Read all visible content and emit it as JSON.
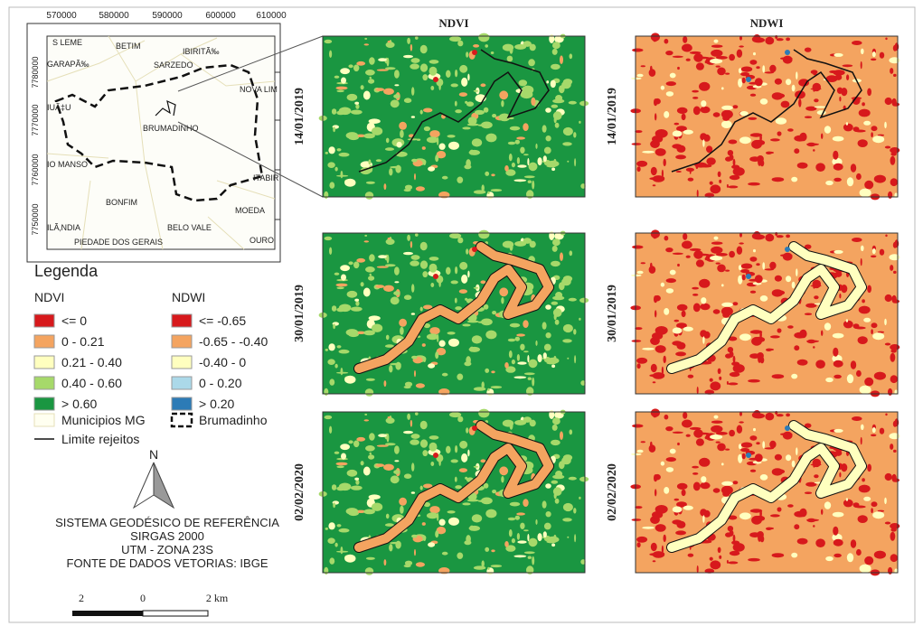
{
  "locator_map": {
    "x_ticks": [
      "570000",
      "580000",
      "590000",
      "600000",
      "610000"
    ],
    "y_ticks": [
      "7780000",
      "7770000",
      "7760000",
      "7750000"
    ],
    "places": [
      {
        "label": "S LEME",
        "x": 58,
        "y": 50
      },
      {
        "label": "BETIM",
        "x": 128,
        "y": 54
      },
      {
        "label": "IBIRITÃ‰",
        "x": 202,
        "y": 60
      },
      {
        "label": "GARAPÃ‰",
        "x": 52,
        "y": 74
      },
      {
        "label": "SARZEDO",
        "x": 170,
        "y": 75
      },
      {
        "label": "NOVA LIM",
        "x": 265,
        "y": 102
      },
      {
        "label": "IUÃ‡U",
        "x": 52,
        "y": 122
      },
      {
        "label": "BRUMADINHO",
        "x": 158,
        "y": 145
      },
      {
        "label": "IO MANSO",
        "x": 52,
        "y": 185
      },
      {
        "label": "ITABIR",
        "x": 280,
        "y": 200
      },
      {
        "label": "BONFIM",
        "x": 117,
        "y": 227
      },
      {
        "label": "MOEDA",
        "x": 260,
        "y": 236
      },
      {
        "label": "BELO VALE",
        "x": 185,
        "y": 255
      },
      {
        "label": "ILÃ‚NDIA",
        "x": 52,
        "y": 255
      },
      {
        "label": "OURO",
        "x": 276,
        "y": 269
      },
      {
        "label": "PIEDADE DOS GERAIS",
        "x": 82,
        "y": 271
      }
    ]
  },
  "panels": {
    "columns": [
      "NDVI",
      "NDWI"
    ],
    "rows": [
      "14/01/2019",
      "30/01/2019",
      "02/02/2020"
    ]
  },
  "legend": {
    "title": "Legenda",
    "ndvi": {
      "title": "NDVI",
      "items": [
        {
          "label": "<= 0",
          "color": "#d7191c"
        },
        {
          "label": "0 - 0.21",
          "color": "#f4a460"
        },
        {
          "label": "0.21 - 0.40",
          "color": "#ffffbf"
        },
        {
          "label": "0.40 - 0.60",
          "color": "#a6d96a"
        },
        {
          "label": "> 0.60",
          "color": "#1a9641"
        }
      ]
    },
    "ndwi": {
      "title": "NDWI",
      "items": [
        {
          "label": "<= -0.65",
          "color": "#d7191c"
        },
        {
          "label": "-0.65 - -0.40",
          "color": "#f4a460"
        },
        {
          "label": "-0.40 - 0",
          "color": "#ffffbf"
        },
        {
          "label": "0 - 0.20",
          "color": "#abd9e9"
        },
        {
          "label": "> 0.20",
          "color": "#2c7bb6"
        }
      ]
    },
    "municipios": "Municipios MG",
    "brumadinho": "Brumadinho",
    "limite": "Limite rejeitos"
  },
  "north": "N",
  "reference": [
    "SISTEMA GEODÉSICO DE REFERÊNCIA",
    "SIRGAS 2000",
    "UTM - ZONA 23S",
    "FONTE DE DADOS VETORIAS: IBGE"
  ],
  "scale_bar": [
    "2",
    "0",
    "2 km"
  ]
}
